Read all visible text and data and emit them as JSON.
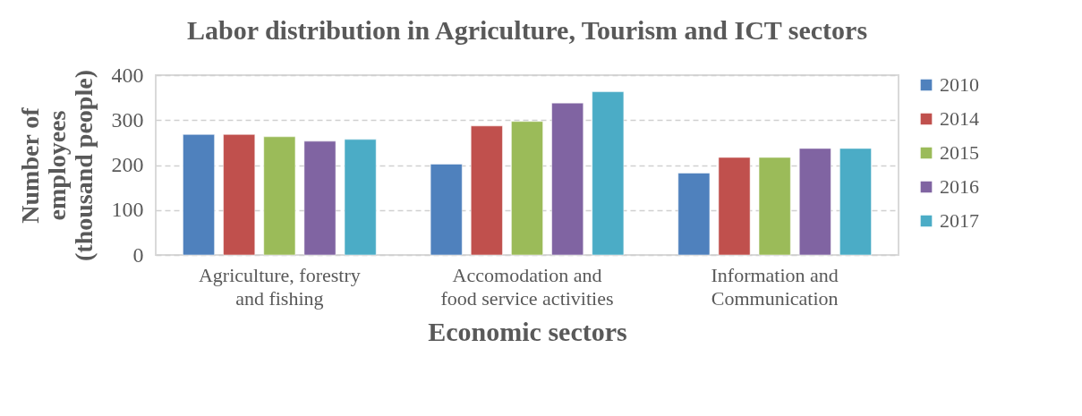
{
  "chart_data": {
    "type": "bar",
    "title": "Labor distribution in Agriculture, Tourism and ICT sectors",
    "xlabel": "Economic sectors",
    "ylabel": "Number of\nemployees\n(thousand people)",
    "categories": [
      "Agriculture, forestry\nand fishing",
      "Accomodation and\nfood service activities",
      "Information and\nCommunication"
    ],
    "series": [
      {
        "name": "2010",
        "color": "#4f81bd",
        "values": [
          268,
          202,
          182
        ]
      },
      {
        "name": "2014",
        "color": "#c0504d",
        "values": [
          268,
          287,
          217
        ]
      },
      {
        "name": "2015",
        "color": "#9bbb59",
        "values": [
          263,
          297,
          217
        ]
      },
      {
        "name": "2016",
        "color": "#8064a2",
        "values": [
          253,
          338,
          237
        ]
      },
      {
        "name": "2017",
        "color": "#4bacc6",
        "values": [
          257,
          363,
          237
        ]
      }
    ],
    "ylim": [
      0,
      400
    ],
    "yticks": [
      0,
      100,
      200,
      300,
      400
    ],
    "grid": "y",
    "legend": "right"
  }
}
